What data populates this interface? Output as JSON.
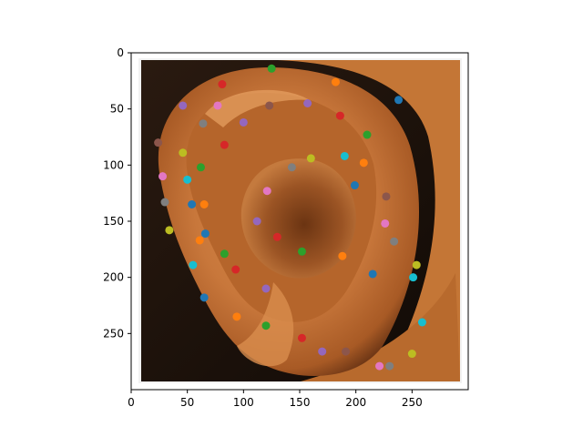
{
  "chart_data": {
    "type": "scatter",
    "title": "",
    "xlabel": "",
    "ylabel": "",
    "xlim": [
      0,
      300
    ],
    "ylim": [
      300,
      0
    ],
    "x_ticks": [
      0,
      50,
      100,
      150,
      200,
      250
    ],
    "y_ticks": [
      0,
      50,
      100,
      150,
      200,
      250
    ],
    "grid": false,
    "background_image": "photo of a human ear (skin tones, dark background)",
    "palette": [
      "#1f77b4",
      "#ff7f0e",
      "#2ca02c",
      "#d62728",
      "#9467bd",
      "#8c564b",
      "#e377c2",
      "#7f7f7f",
      "#bcbd22",
      "#17becf"
    ],
    "points": [
      {
        "x": 125,
        "y": 14,
        "color": "#2ca02c"
      },
      {
        "x": 182,
        "y": 26,
        "color": "#ff7f0e"
      },
      {
        "x": 81,
        "y": 28,
        "color": "#d62728"
      },
      {
        "x": 46,
        "y": 47,
        "color": "#9467bd"
      },
      {
        "x": 77,
        "y": 47,
        "color": "#e377c2"
      },
      {
        "x": 123,
        "y": 47,
        "color": "#8c564b"
      },
      {
        "x": 157,
        "y": 45,
        "color": "#9467bd"
      },
      {
        "x": 238,
        "y": 42,
        "color": "#1f77b4"
      },
      {
        "x": 186,
        "y": 56,
        "color": "#d62728"
      },
      {
        "x": 64,
        "y": 63,
        "color": "#7f7f7f"
      },
      {
        "x": 100,
        "y": 62,
        "color": "#9467bd"
      },
      {
        "x": 210,
        "y": 73,
        "color": "#2ca02c"
      },
      {
        "x": 24,
        "y": 80,
        "color": "#8c564b"
      },
      {
        "x": 83,
        "y": 82,
        "color": "#d62728"
      },
      {
        "x": 46,
        "y": 89,
        "color": "#bcbd22"
      },
      {
        "x": 160,
        "y": 94,
        "color": "#bcbd22"
      },
      {
        "x": 190,
        "y": 92,
        "color": "#17becf"
      },
      {
        "x": 207,
        "y": 98,
        "color": "#ff7f0e"
      },
      {
        "x": 62,
        "y": 102,
        "color": "#2ca02c"
      },
      {
        "x": 143,
        "y": 102,
        "color": "#7f7f7f"
      },
      {
        "x": 28,
        "y": 110,
        "color": "#e377c2"
      },
      {
        "x": 50,
        "y": 113,
        "color": "#17becf"
      },
      {
        "x": 199,
        "y": 118,
        "color": "#1f77b4"
      },
      {
        "x": 121,
        "y": 123,
        "color": "#e377c2"
      },
      {
        "x": 227,
        "y": 128,
        "color": "#8c564b"
      },
      {
        "x": 30,
        "y": 133,
        "color": "#7f7f7f"
      },
      {
        "x": 54,
        "y": 135,
        "color": "#1f77b4"
      },
      {
        "x": 65,
        "y": 135,
        "color": "#ff7f0e"
      },
      {
        "x": 112,
        "y": 150,
        "color": "#9467bd"
      },
      {
        "x": 226,
        "y": 152,
        "color": "#e377c2"
      },
      {
        "x": 34,
        "y": 158,
        "color": "#bcbd22"
      },
      {
        "x": 66,
        "y": 161,
        "color": "#1f77b4"
      },
      {
        "x": 61,
        "y": 167,
        "color": "#ff7f0e"
      },
      {
        "x": 130,
        "y": 164,
        "color": "#d62728"
      },
      {
        "x": 234,
        "y": 168,
        "color": "#7f7f7f"
      },
      {
        "x": 83,
        "y": 179,
        "color": "#2ca02c"
      },
      {
        "x": 152,
        "y": 177,
        "color": "#2ca02c"
      },
      {
        "x": 188,
        "y": 181,
        "color": "#ff7f0e"
      },
      {
        "x": 55,
        "y": 189,
        "color": "#17becf"
      },
      {
        "x": 93,
        "y": 193,
        "color": "#d62728"
      },
      {
        "x": 254,
        "y": 189,
        "color": "#bcbd22"
      },
      {
        "x": 215,
        "y": 197,
        "color": "#1f77b4"
      },
      {
        "x": 251,
        "y": 200,
        "color": "#17becf"
      },
      {
        "x": 120,
        "y": 210,
        "color": "#9467bd"
      },
      {
        "x": 65,
        "y": 218,
        "color": "#1f77b4"
      },
      {
        "x": 94,
        "y": 235,
        "color": "#ff7f0e"
      },
      {
        "x": 259,
        "y": 240,
        "color": "#17becf"
      },
      {
        "x": 120,
        "y": 243,
        "color": "#2ca02c"
      },
      {
        "x": 152,
        "y": 254,
        "color": "#d62728"
      },
      {
        "x": 170,
        "y": 266,
        "color": "#9467bd"
      },
      {
        "x": 191,
        "y": 266,
        "color": "#8c564b"
      },
      {
        "x": 250,
        "y": 268,
        "color": "#bcbd22"
      },
      {
        "x": 221,
        "y": 279,
        "color": "#e377c2"
      },
      {
        "x": 230,
        "y": 279,
        "color": "#7f7f7f"
      }
    ]
  }
}
